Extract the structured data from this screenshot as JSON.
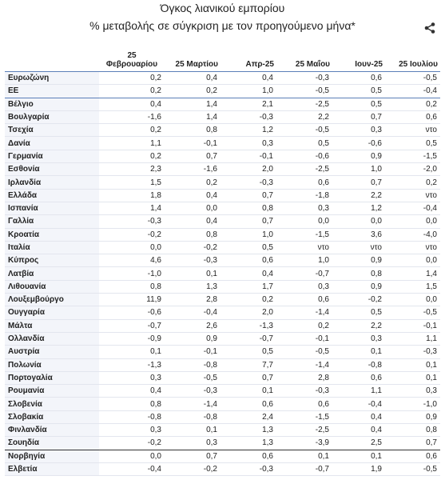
{
  "header": {
    "title": "Όγκος λιανικού εμπορίου",
    "subtitle": "% μεταβολής σε σύγκριση με τον προηγούμενο μήνα*"
  },
  "table": {
    "columns": [
      "",
      "25 Φεβρουαρίου",
      "25 Μαρτίου",
      "Απρ-25",
      "25 Μαΐου",
      "Ιουν-25",
      "25 Ιουλίου"
    ],
    "rows": [
      [
        "Ευρωζώνη",
        "0,2",
        "0,4",
        "0,4",
        "-0,3",
        "0,6",
        "-0,5"
      ],
      [
        "ΕΕ",
        "0,2",
        "0,2",
        "1,0",
        "-0,5",
        "0,5",
        "-0,4"
      ],
      [
        "Βέλγιο",
        "0,4",
        "1,4",
        "2,1",
        "-2,5",
        "0,5",
        "0,2"
      ],
      [
        "Βουλγαρία",
        "-1,6",
        "1,4",
        "-0,3",
        "2,2",
        "0,7",
        "0,6"
      ],
      [
        "Τσεχία",
        "0,2",
        "0,8",
        "1,2",
        "-0,5",
        "0,3",
        "ντο"
      ],
      [
        "Δανία",
        "1,1",
        "-0,1",
        "0,3",
        "0,5",
        "-0,6",
        "0,5"
      ],
      [
        "Γερμανία",
        "0,2",
        "0,7",
        "-0,1",
        "-0,6",
        "0,9",
        "-1,5"
      ],
      [
        "Εσθονία",
        "2,3",
        "-1,6",
        "2,0",
        "-2,5",
        "1,0",
        "-2,0"
      ],
      [
        "Ιρλανδία",
        "1,5",
        "0,2",
        "-0,3",
        "0,6",
        "0,7",
        "0,2"
      ],
      [
        "Ελλάδα",
        "1,8",
        "0,4",
        "0,7",
        "-1,8",
        "2,2",
        "ντο"
      ],
      [
        "Ισπανία",
        "1,4",
        "0,0",
        "0,8",
        "0,3",
        "1,2",
        "-0,4"
      ],
      [
        "Γαλλία",
        "-0,3",
        "0,4",
        "0,7",
        "0,0",
        "0,0",
        "0,0"
      ],
      [
        "Κροατία",
        "-0,2",
        "0,8",
        "1,0",
        "-1,5",
        "3,6",
        "-4,0"
      ],
      [
        "Ιταλία",
        "0,0",
        "-0,2",
        "0,5",
        "ντο",
        "ντο",
        "ντο"
      ],
      [
        "Κύπρος",
        "4,6",
        "-0,3",
        "0,6",
        "1,0",
        "0,9",
        "0,0"
      ],
      [
        "Λατβία",
        "-1,0",
        "0,1",
        "0,4",
        "-0,7",
        "0,8",
        "1,4"
      ],
      [
        "Λιθουανία",
        "0,8",
        "1,3",
        "1,7",
        "0,3",
        "0,9",
        "1,5"
      ],
      [
        "Λουξεμβούργο",
        "11,9",
        "2,8",
        "0,2",
        "0,6",
        "-0,2",
        "0,0"
      ],
      [
        "Ουγγαρία",
        "-0,6",
        "-0,4",
        "2,0",
        "-1,4",
        "0,5",
        "-0,5"
      ],
      [
        "Μάλτα",
        "-0,7",
        "2,6",
        "-1,3",
        "0,2",
        "2,2",
        "-0,1"
      ],
      [
        "Ολλανδία",
        "-0,9",
        "0,9",
        "-0,7",
        "-0,1",
        "0,3",
        "1,1"
      ],
      [
        "Αυστρία",
        "0,1",
        "-0,1",
        "0,5",
        "-0,5",
        "0,1",
        "-0,3"
      ],
      [
        "Πολωνία",
        "-1,3",
        "-0,8",
        "7,7",
        "-1,4",
        "-0,8",
        "0,1"
      ],
      [
        "Πορτογαλία",
        "0,3",
        "-0,5",
        "0,7",
        "2,8",
        "0,6",
        "0,1"
      ],
      [
        "Ρουμανία",
        "0,4",
        "-0,3",
        "0,1",
        "-0,3",
        "1,1",
        "0,3"
      ],
      [
        "Σλοβενία",
        "0,8",
        "-1,4",
        "0,6",
        "0,6",
        "-0,4",
        "-1,0"
      ],
      [
        "Σλοβακία",
        "-0,8",
        "-0,8",
        "2,4",
        "-1,5",
        "0,4",
        "0,9"
      ],
      [
        "Φινλανδία",
        "0,3",
        "0,1",
        "1,3",
        "-2,5",
        "0,4",
        "0,8"
      ],
      [
        "Σουηδία",
        "-0,2",
        "0,3",
        "1,3",
        "-3,9",
        "2,5",
        "0,7"
      ],
      [
        "Νορβηγία",
        "0,0",
        "0,7",
        "0,6",
        "0,1",
        "0,1",
        "0,6"
      ],
      [
        "Ελβετία",
        "-0,4",
        "-0,2",
        "-0,3",
        "-0,7",
        "1,9",
        "-0,5"
      ]
    ]
  }
}
